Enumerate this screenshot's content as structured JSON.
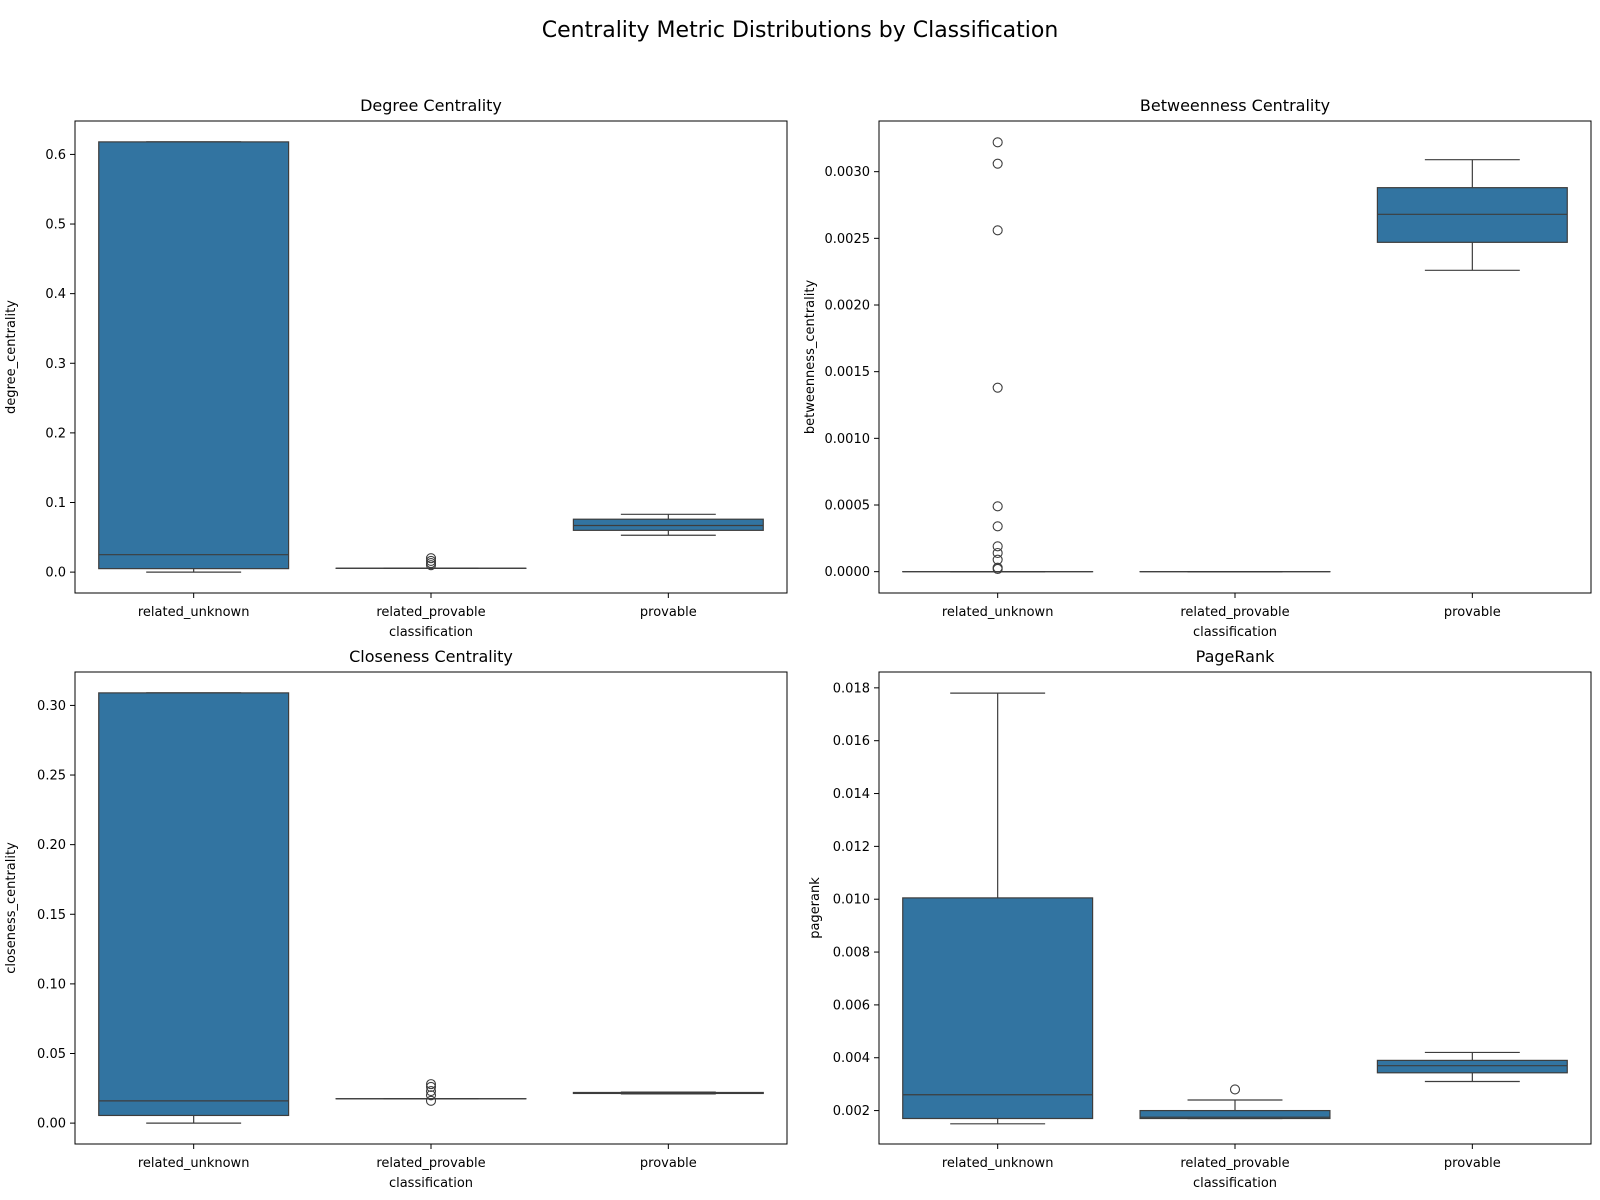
{
  "title": "Centrality Metric Distributions by Classification",
  "box_color": "#3274a1",
  "chart_data": [
    {
      "type": "box",
      "title": "Degree Centrality",
      "xlabel": "classification",
      "ylabel": "degree_centrality",
      "categories": [
        "related_unknown",
        "related_provable",
        "provable"
      ],
      "ylim": [
        -0.03,
        0.648
      ],
      "yticks": [
        0.0,
        0.1,
        0.2,
        0.3,
        0.4,
        0.5,
        0.6
      ],
      "ytick_labels": [
        "0.0",
        "0.1",
        "0.2",
        "0.3",
        "0.4",
        "0.5",
        "0.6"
      ],
      "boxes": [
        {
          "whislo": 0.0,
          "q1": 0.005,
          "med": 0.025,
          "q3": 0.618,
          "whishi": 0.618,
          "fliers": []
        },
        {
          "whislo": 0.0055,
          "q1": 0.0055,
          "med": 0.0055,
          "q3": 0.0055,
          "whishi": 0.0055,
          "fliers": [
            0.01,
            0.013,
            0.016,
            0.02
          ]
        },
        {
          "whislo": 0.053,
          "q1": 0.06,
          "med": 0.067,
          "q3": 0.076,
          "whishi": 0.083,
          "fliers": []
        }
      ]
    },
    {
      "type": "box",
      "title": "Betweenness Centrality",
      "xlabel": "classification",
      "ylabel": "betweenness_centrality",
      "categories": [
        "related_unknown",
        "related_provable",
        "provable"
      ],
      "ylim": [
        -0.00016,
        0.00338
      ],
      "yticks": [
        0.0,
        0.0005,
        0.001,
        0.0015,
        0.002,
        0.0025,
        0.003
      ],
      "ytick_labels": [
        "0.0000",
        "0.0005",
        "0.0010",
        "0.0015",
        "0.0020",
        "0.0025",
        "0.0030"
      ],
      "boxes": [
        {
          "whislo": 0.0,
          "q1": 0.0,
          "med": 0.0,
          "q3": 0.0,
          "whishi": 0.0,
          "fliers": [
            2e-05,
            3e-05,
            9e-05,
            0.00014,
            0.00019,
            0.00034,
            0.00049,
            0.00138,
            0.00256,
            0.00306,
            0.00322
          ]
        },
        {
          "whislo": 0.0,
          "q1": 0.0,
          "med": 0.0,
          "q3": 0.0,
          "whishi": 0.0,
          "fliers": []
        },
        {
          "whislo": 0.00226,
          "q1": 0.00247,
          "med": 0.00268,
          "q3": 0.00288,
          "whishi": 0.00309,
          "fliers": []
        }
      ]
    },
    {
      "type": "box",
      "title": "Closeness Centrality",
      "xlabel": "classification",
      "ylabel": "closeness_centrality",
      "categories": [
        "related_unknown",
        "related_provable",
        "provable"
      ],
      "ylim": [
        -0.015,
        0.324
      ],
      "yticks": [
        0.0,
        0.05,
        0.1,
        0.15,
        0.2,
        0.25,
        0.3
      ],
      "ytick_labels": [
        "0.00",
        "0.05",
        "0.10",
        "0.15",
        "0.20",
        "0.25",
        "0.30"
      ],
      "boxes": [
        {
          "whislo": 0.0,
          "q1": 0.0055,
          "med": 0.016,
          "q3": 0.309,
          "whishi": 0.309,
          "fliers": []
        },
        {
          "whislo": 0.0175,
          "q1": 0.0175,
          "med": 0.0175,
          "q3": 0.0175,
          "whishi": 0.0175,
          "fliers": [
            0.016,
            0.02,
            0.023,
            0.026,
            0.028
          ]
        },
        {
          "whislo": 0.021,
          "q1": 0.0213,
          "med": 0.0216,
          "q3": 0.022,
          "whishi": 0.0223,
          "fliers": []
        }
      ]
    },
    {
      "type": "box",
      "title": "PageRank",
      "xlabel": "classification",
      "ylabel": "pagerank",
      "categories": [
        "related_unknown",
        "related_provable",
        "provable"
      ],
      "ylim": [
        0.000735,
        0.0186
      ],
      "yticks": [
        0.002,
        0.004,
        0.006,
        0.008,
        0.01,
        0.012,
        0.014,
        0.016,
        0.018
      ],
      "ytick_labels": [
        "0.002",
        "0.004",
        "0.006",
        "0.008",
        "0.010",
        "0.012",
        "0.014",
        "0.016",
        "0.018"
      ],
      "boxes": [
        {
          "whislo": 0.0015,
          "q1": 0.0017,
          "med": 0.0026,
          "q3": 0.01005,
          "whishi": 0.0178,
          "fliers": []
        },
        {
          "whislo": 0.0017,
          "q1": 0.0017,
          "med": 0.00175,
          "q3": 0.002,
          "whishi": 0.0024,
          "fliers": [
            0.0028
          ]
        },
        {
          "whislo": 0.0031,
          "q1": 0.00343,
          "med": 0.0037,
          "q3": 0.0039,
          "whishi": 0.0042,
          "fliers": []
        }
      ]
    }
  ]
}
